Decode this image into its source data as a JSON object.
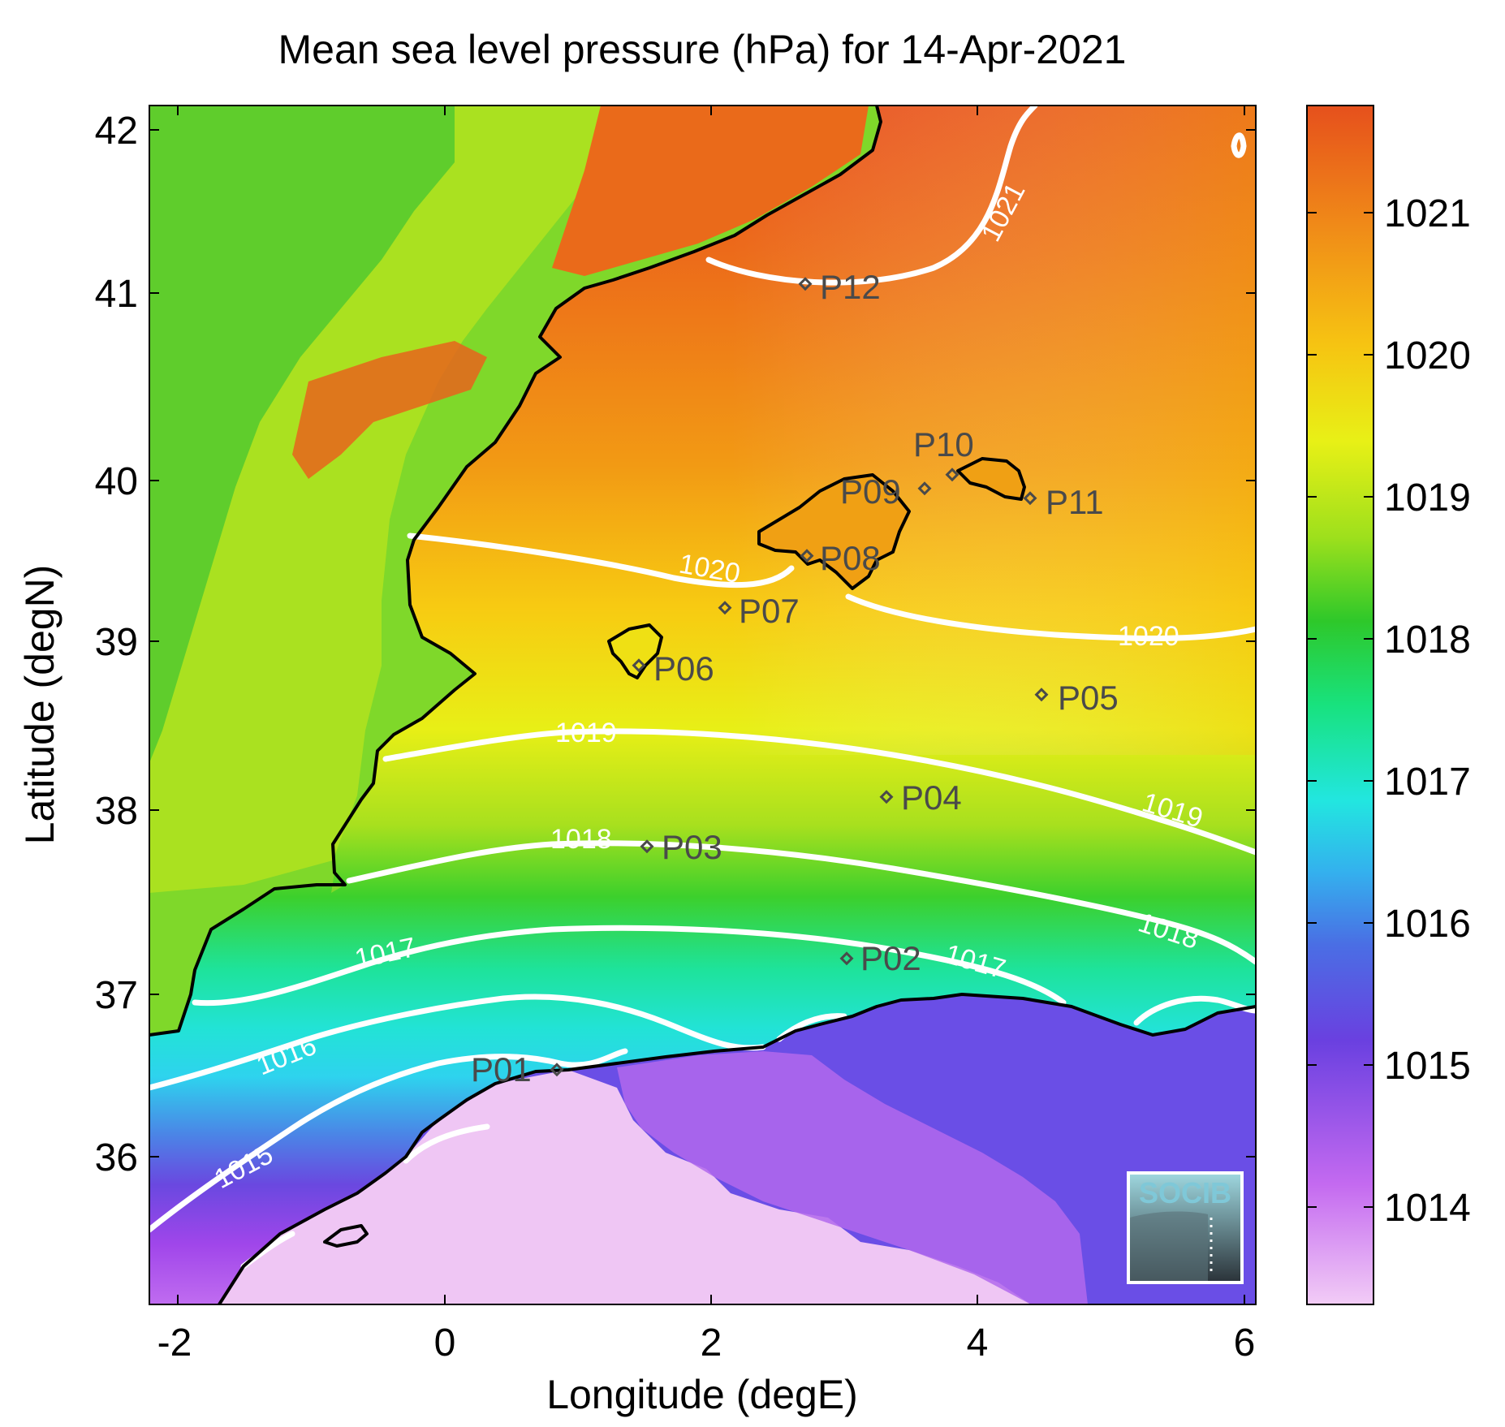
{
  "title": "Mean sea level pressure (hPa) for 14-Apr-2021",
  "xlabel": "Longitude (degE)",
  "ylabel": "Latitude (degN)",
  "logo_text": "SOCIB",
  "x_ticks": [
    "-2",
    "0",
    "2",
    "4",
    "6"
  ],
  "y_ticks": [
    "42",
    "41",
    "40",
    "39",
    "38",
    "37",
    "36"
  ],
  "colorbar_ticks": [
    "1021",
    "1020",
    "1019",
    "1018",
    "1017",
    "1016",
    "1015",
    "1014"
  ],
  "contour_labels": [
    "1021",
    "1020",
    "1020",
    "1019",
    "1019",
    "1018",
    "1018",
    "1017",
    "1017",
    "1016",
    "1015"
  ],
  "stations": [
    "P01",
    "P02",
    "P03",
    "P04",
    "P05",
    "P06",
    "P07",
    "P08",
    "P09",
    "P10",
    "P11",
    "P12"
  ],
  "colors": {
    "high_pressure": "#e84a1a",
    "mid_pressure": "#f0e010",
    "low_pressure": "#e6a8f2",
    "contour": "#ffffff",
    "coastline": "#000000"
  }
}
